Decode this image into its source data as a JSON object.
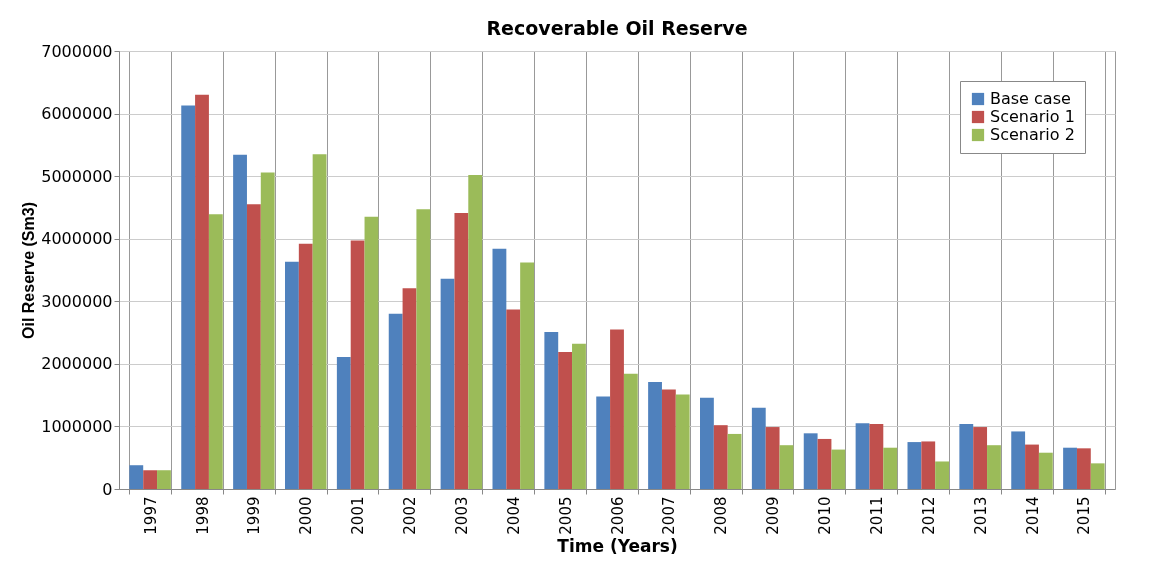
{
  "chart_data": {
    "type": "bar",
    "title": "Recoverable Oil Reserve",
    "xlabel": "Time (Years)",
    "ylabel": "Oil Reserve (Sm3)",
    "categories": [
      "1997",
      "1998",
      "1999",
      "2000",
      "2001",
      "2002",
      "2003",
      "2004",
      "2005",
      "2006",
      "2007",
      "2008",
      "2009",
      "2010",
      "2011",
      "2012",
      "2013",
      "2014",
      "2015"
    ],
    "series": [
      {
        "name": "Base case",
        "color": "#4f81bd",
        "values": [
          380000,
          6130000,
          5340000,
          3630000,
          2110000,
          2800000,
          3360000,
          3840000,
          2510000,
          1480000,
          1710000,
          1460000,
          1300000,
          890000,
          1050000,
          750000,
          1040000,
          920000,
          660000
        ]
      },
      {
        "name": "Scenario 1",
        "color": "#c0504d",
        "values": [
          300000,
          6300000,
          4550000,
          3920000,
          3970000,
          3210000,
          4410000,
          2870000,
          2190000,
          2550000,
          1590000,
          1020000,
          990000,
          800000,
          1040000,
          760000,
          990000,
          710000,
          650000
        ]
      },
      {
        "name": "Scenario 2",
        "color": "#9bbb59",
        "values": [
          300000,
          4390000,
          5060000,
          5350000,
          4350000,
          4470000,
          5020000,
          3620000,
          2320000,
          1840000,
          1510000,
          880000,
          700000,
          630000,
          660000,
          440000,
          700000,
          580000,
          410000
        ]
      }
    ],
    "ylim": [
      0,
      7000000
    ],
    "yticks": [
      0,
      1000000,
      2000000,
      3000000,
      4000000,
      5000000,
      6000000,
      7000000
    ],
    "grid": true,
    "legend": "top right"
  }
}
